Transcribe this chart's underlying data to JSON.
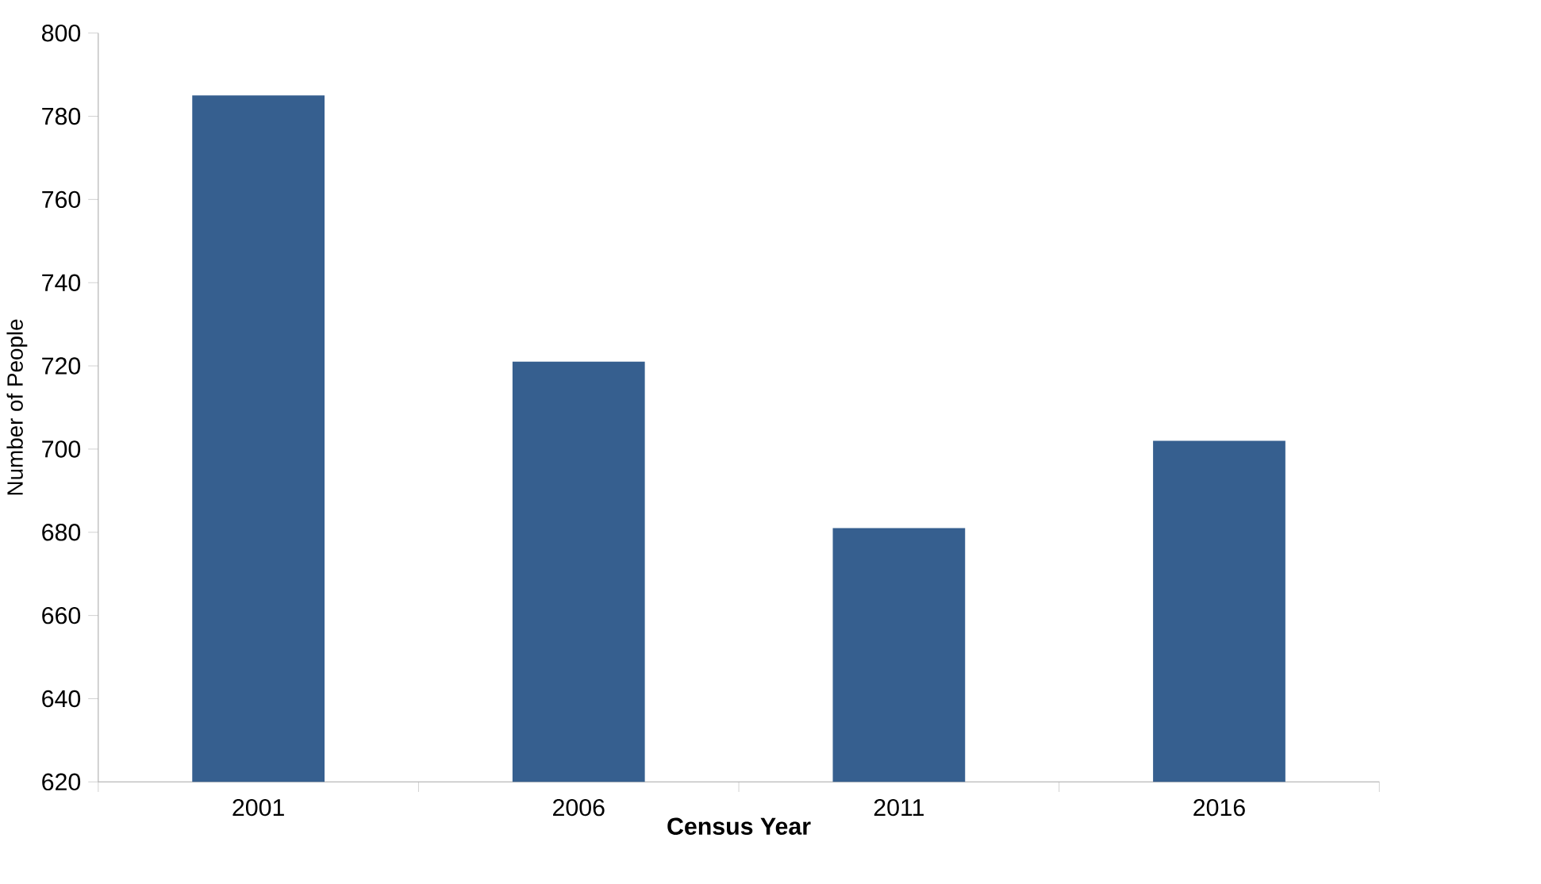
{
  "chart_data": {
    "type": "bar",
    "xlabel": "Census Year",
    "ylabel": "Number of People",
    "categories": [
      "2001",
      "2006",
      "2011",
      "2016"
    ],
    "values": [
      785,
      721,
      681,
      702
    ],
    "color": "#365f8f",
    "ylim": [
      620,
      800
    ],
    "yticks": [
      620,
      640,
      660,
      680,
      700,
      720,
      740,
      760,
      780,
      800
    ]
  }
}
